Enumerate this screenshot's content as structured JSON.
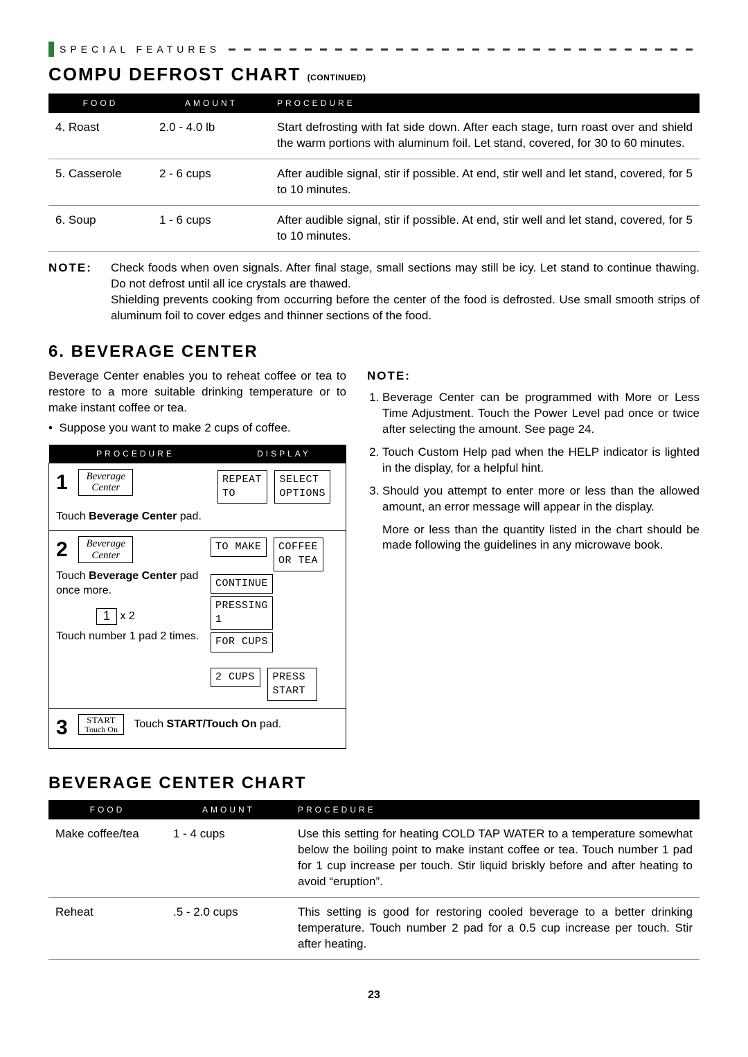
{
  "header": {
    "label": "SPECIAL FEATURES"
  },
  "defrost": {
    "title": "COMPU DEFROST CHART",
    "continued": "(CONTINUED)",
    "columns": [
      "FOOD",
      "AMOUNT",
      "PROCEDURE"
    ],
    "rows": [
      {
        "food": "4. Roast",
        "amount": "2.0  -  4.0 lb",
        "procedure": "Start defrosting with fat side down. After each stage, turn roast over and shield the warm portions with aluminum foil. Let stand, covered, for 30 to 60 minutes."
      },
      {
        "food": "5. Casserole",
        "amount": "2  -  6 cups",
        "procedure": "After audible signal, stir if possible. At end, stir well and let stand, covered, for 5 to 10 minutes."
      },
      {
        "food": "6. Soup",
        "amount": "1  -  6 cups",
        "procedure": "After audible signal, stir if possible. At end, stir well and let stand, covered, for 5 to 10 minutes."
      }
    ],
    "note_label": "NOTE:",
    "note1": "Check foods when oven signals. After final stage, small sections may still be icy. Let stand to continue thawing. Do not defrost until all ice crystals are thawed.",
    "note2": "Shielding prevents cooking from occurring before the center of the food is defrosted. Use small smooth strips of aluminum foil to cover edges and thinner sections of the food."
  },
  "bev": {
    "title": "6. BEVERAGE CENTER",
    "intro": "Beverage Center enables you to reheat coffee or tea to restore to a more suitable drinking temperature or to make instant coffee or tea.",
    "bullet": "Suppose you want to make 2 cups of coffee.",
    "proc_headers": [
      "PROCEDURE",
      "DISPLAY"
    ],
    "step1": {
      "num": "1",
      "btn": "Beverage\nCenter",
      "disp1": "REPEAT\nTO",
      "disp2": "SELECT\nOPTIONS",
      "caption_pre": "Touch ",
      "caption_bold": "Beverage Center",
      "caption_post": " pad."
    },
    "step2": {
      "num": "2",
      "btn": "Beverage\nCenter",
      "line1_pre": "Touch ",
      "line1_bold": "Beverage Center",
      "line1_post": " pad once more.",
      "numbtn": "1",
      "x2": "x 2",
      "line2": "Touch number 1 pad 2 times.",
      "d1": "TO MAKE",
      "d2": "COFFEE\nOR TEA",
      "d3": "CONTINUE",
      "d4": "PRESSING\n1",
      "d5": "FOR CUPS",
      "d6": "2 CUPS",
      "d7": "PRESS\nSTART"
    },
    "step3": {
      "num": "3",
      "btn_top": "START",
      "btn_bottom": "Touch On",
      "caption_pre": "Touch ",
      "caption_bold": "START/Touch On",
      "caption_post": " pad."
    },
    "right_note_label": "NOTE:",
    "right_notes": [
      "Beverage Center can be programmed with More or Less Time Adjustment. Touch the Power Level pad once or twice after selecting the amount. See page 24.",
      "Touch Custom Help pad when the HELP indicator is lighted in the display, for a helpful hint.",
      "Should you attempt to enter more or less than the allowed amount, an error message will appear in the display."
    ],
    "right_extra": "More or less than the quantity listed in the chart should be made following the guidelines in any microwave book."
  },
  "bevchart": {
    "title": "BEVERAGE CENTER CHART",
    "columns": [
      "FOOD",
      "AMOUNT",
      "PROCEDURE"
    ],
    "rows": [
      {
        "food": "Make coffee/tea",
        "amount": "1  -  4     cups",
        "procedure": "Use this setting for heating COLD TAP WATER to a temperature somewhat below the boiling point to make instant coffee or tea. Touch number 1 pad for 1 cup increase per touch. Stir liquid briskly before and after heating to avoid “eruption”."
      },
      {
        "food": "Reheat",
        "amount": ".5  -  2.0  cups",
        "procedure": "This setting is good for restoring cooled beverage to a better drinking temperature. Touch number 2 pad for a 0.5 cup increase per touch. Stir after heating."
      }
    ]
  },
  "page": "23"
}
